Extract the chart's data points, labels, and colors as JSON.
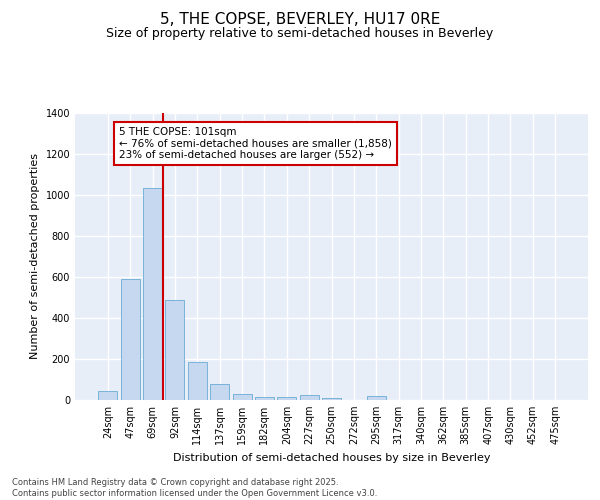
{
  "title": "5, THE COPSE, BEVERLEY, HU17 0RE",
  "subtitle": "Size of property relative to semi-detached houses in Beverley",
  "xlabel": "Distribution of semi-detached houses by size in Beverley",
  "ylabel": "Number of semi-detached properties",
  "categories": [
    "24sqm",
    "47sqm",
    "69sqm",
    "92sqm",
    "114sqm",
    "137sqm",
    "159sqm",
    "182sqm",
    "204sqm",
    "227sqm",
    "250sqm",
    "272sqm",
    "295sqm",
    "317sqm",
    "340sqm",
    "362sqm",
    "385sqm",
    "407sqm",
    "430sqm",
    "452sqm",
    "475sqm"
  ],
  "values": [
    45,
    590,
    1030,
    485,
    185,
    80,
    28,
    17,
    17,
    25,
    8,
    0,
    18,
    0,
    0,
    0,
    0,
    0,
    0,
    0,
    0
  ],
  "bar_color": "#c5d8f0",
  "bar_edge_color": "#6aaad4",
  "subject_line_color": "#cc0000",
  "annotation_text": "5 THE COPSE: 101sqm\n← 76% of semi-detached houses are smaller (1,858)\n23% of semi-detached houses are larger (552) →",
  "annotation_box_color": "#cc0000",
  "ylim": [
    0,
    1400
  ],
  "yticks": [
    0,
    200,
    400,
    600,
    800,
    1000,
    1200,
    1400
  ],
  "background_color": "#e8eef8",
  "grid_color": "#ffffff",
  "footer_text": "Contains HM Land Registry data © Crown copyright and database right 2025.\nContains public sector information licensed under the Open Government Licence v3.0.",
  "title_fontsize": 11,
  "subtitle_fontsize": 9,
  "ylabel_fontsize": 8,
  "xlabel_fontsize": 8,
  "annotation_fontsize": 7.5,
  "tick_fontsize": 7
}
